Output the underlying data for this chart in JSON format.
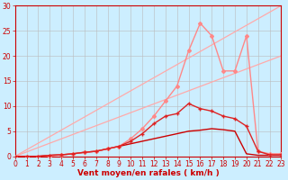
{
  "background_color": "#cceeff",
  "grid_color": "#bbbbbb",
  "xlabel": "Vent moyen/en rafales ( km/h )",
  "xlabel_color": "#cc0000",
  "xlabel_fontsize": 6.5,
  "tick_color": "#cc0000",
  "tick_fontsize": 5.5,
  "xlim": [
    0,
    23
  ],
  "ylim": [
    0,
    30
  ],
  "yticks": [
    0,
    5,
    10,
    15,
    20,
    25,
    30
  ],
  "xticks": [
    0,
    1,
    2,
    3,
    4,
    5,
    6,
    7,
    8,
    9,
    10,
    11,
    12,
    13,
    14,
    15,
    16,
    17,
    18,
    19,
    20,
    21,
    22,
    23
  ],
  "line1": {
    "x": [
      0,
      23
    ],
    "y": [
      0,
      30
    ],
    "color": "#ffaaaa",
    "lw": 0.9
  },
  "line2": {
    "x": [
      0,
      23
    ],
    "y": [
      0,
      20
    ],
    "color": "#ffaaaa",
    "lw": 0.9
  },
  "curve_light_pink": {
    "x": [
      0,
      1,
      2,
      3,
      4,
      5,
      6,
      7,
      8,
      9,
      10,
      11,
      12,
      13,
      14,
      15,
      16,
      17,
      18,
      19,
      20,
      21,
      22,
      23
    ],
    "y": [
      0,
      0,
      0,
      0,
      0.3,
      0.5,
      0.8,
      1.0,
      1.5,
      2.0,
      3.5,
      5.5,
      8.0,
      11.0,
      14.0,
      21.0,
      26.5,
      24.0,
      17.0,
      17.0,
      24.0,
      1.0,
      0.5,
      0.5
    ],
    "color": "#ff8888",
    "lw": 1.0,
    "marker": "D",
    "ms": 2
  },
  "curve_medium_red": {
    "x": [
      0,
      1,
      2,
      3,
      4,
      5,
      6,
      7,
      8,
      9,
      10,
      11,
      12,
      13,
      14,
      15,
      16,
      17,
      18,
      19,
      20,
      21,
      22,
      23
    ],
    "y": [
      0,
      0,
      0,
      0.2,
      0.3,
      0.5,
      0.8,
      1.0,
      1.5,
      2.0,
      3.0,
      4.5,
      6.5,
      8.0,
      8.5,
      10.5,
      9.5,
      9.0,
      8.0,
      7.5,
      6.0,
      1.0,
      0.3,
      0.3
    ],
    "color": "#dd2222",
    "lw": 1.0,
    "marker": "+",
    "ms": 3
  },
  "curve_dark_flat": {
    "x": [
      0,
      1,
      2,
      3,
      4,
      5,
      6,
      7,
      8,
      9,
      10,
      11,
      12,
      13,
      14,
      15,
      16,
      17,
      18,
      19,
      20,
      21,
      22,
      23
    ],
    "y": [
      0,
      0,
      0,
      0.2,
      0.3,
      0.5,
      0.8,
      1.0,
      1.5,
      2.0,
      2.5,
      3.0,
      3.5,
      4.0,
      4.5,
      5.0,
      5.2,
      5.5,
      5.3,
      5.0,
      0.5,
      0.2,
      0.2,
      0.2
    ],
    "color": "#cc0000",
    "lw": 1.0,
    "marker": null,
    "ms": 0
  }
}
